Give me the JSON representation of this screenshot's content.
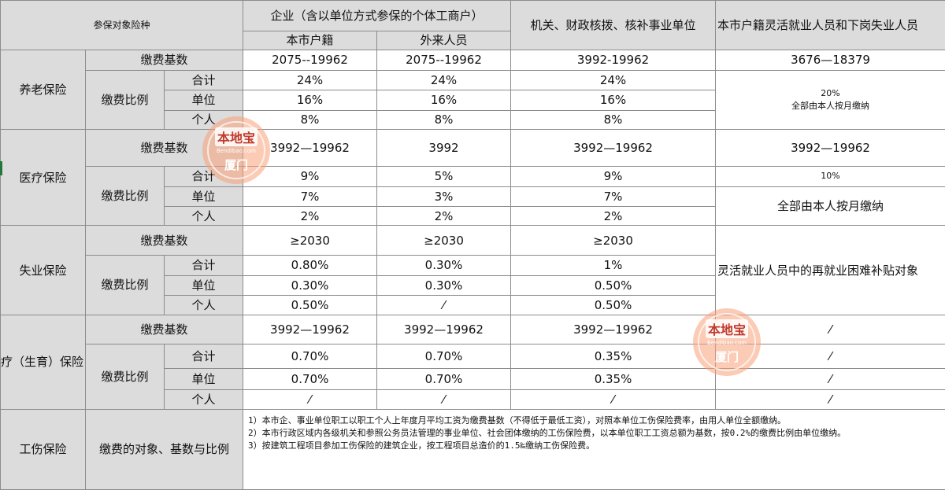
{
  "header": {
    "corner_label": "参保对象险种",
    "enterprise_group": "企业（含以单位方式参保的个体工商户）",
    "local_hukou": "本市户籍",
    "nonlocal": "外来人员",
    "institutions": "机关、财政核拨、核补事业单位",
    "flexible": "本市户籍灵活就业人员和下岗失业人员"
  },
  "labels": {
    "base": "缴费基数",
    "ratio": "缴费比例",
    "total": "合计",
    "unit": "单位",
    "personal": "个人"
  },
  "pension": {
    "name": "养老保险",
    "base": [
      "2075--19962",
      "2075--19962",
      "3992-19962",
      "3676—18379"
    ],
    "total": [
      "24%",
      "24%",
      "24%"
    ],
    "unit": [
      "16%",
      "16%",
      "16%"
    ],
    "personal": [
      "8%",
      "8%",
      "8%"
    ],
    "flex_rate": "20%",
    "flex_note": "全部由本人按月缴纳"
  },
  "medical": {
    "name": "医疗保险",
    "base": [
      "3992—19962",
      "3992",
      "3992—19962",
      "3992—19962"
    ],
    "total": [
      "9%",
      "5%",
      "9%",
      "10%"
    ],
    "unit": [
      "7%",
      "3%",
      "7%"
    ],
    "personal": [
      "2%",
      "2%",
      "2%"
    ],
    "flex_note": "全部由本人按月缴纳"
  },
  "unemployment": {
    "name": "失业保险",
    "base": [
      "≥2030",
      "≥2030",
      "≥2030"
    ],
    "total": [
      "0.80%",
      "0.30%",
      "1%"
    ],
    "unit": [
      "0.30%",
      "0.30%",
      "0.50%"
    ],
    "personal": [
      "0.50%",
      "⁄",
      "0.50%"
    ],
    "flex_note": "灵活就业人员中的再就业困难补贴对象"
  },
  "maternity": {
    "name": "医疗（生育）保险",
    "base": [
      "3992—19962",
      "3992—19962",
      "3992—19962",
      "⁄"
    ],
    "total": [
      "0.70%",
      "0.70%",
      "0.35%",
      "⁄"
    ],
    "unit": [
      "0.70%",
      "0.70%",
      "0.35%",
      "⁄"
    ],
    "personal": [
      "⁄",
      "⁄",
      "⁄",
      "⁄"
    ]
  },
  "injury": {
    "name": "工伤保险",
    "label": "缴费的对象、基数与比例",
    "notes": [
      "1）本市企、事业单位职工以职工个人上年度月平均工资为缴费基数（不得低于最低工资），对照本单位工伤保险费率，由用人单位全额缴纳。",
      "2）本市行政区域内各级机关和参照公务员法管理的事业单位、社会团体缴纳的工伤保险费，以本单位职工工资总额为基数，按0.2%的缴费比例由单位缴纳。",
      "3）按建筑工程项目参加工伤保险的建筑企业，按工程项目总造价的1.5‰缴纳工伤保险费。"
    ]
  },
  "watermark": {
    "brand": "本地宝",
    "site": "Bendibao.com",
    "city": "厦门"
  }
}
